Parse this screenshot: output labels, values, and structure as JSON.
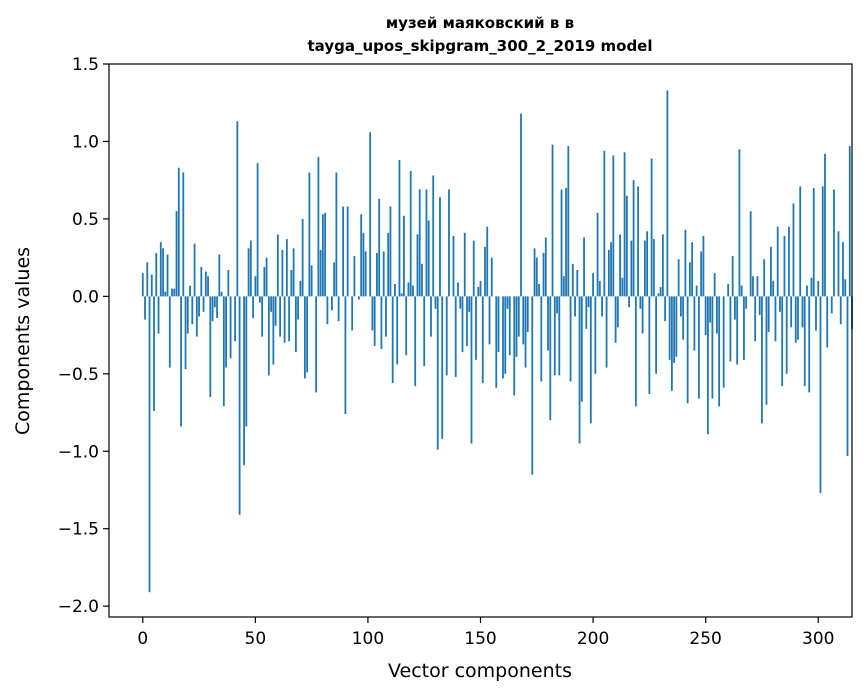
{
  "chart_data": {
    "type": "bar",
    "title": "музей маяковский в в",
    "subtitle": "tayga_upos_skipgram_300_2_2019 model",
    "xlabel": "Vector components",
    "ylabel": "Components values",
    "xlim": [
      -15,
      315
    ],
    "ylim": [
      -2.07,
      1.5
    ],
    "xticks": [
      0,
      50,
      100,
      150,
      200,
      250,
      300
    ],
    "xtick_labels": [
      "0",
      "50",
      "100",
      "150",
      "200",
      "250",
      "300"
    ],
    "yticks": [
      1.5,
      1.0,
      0.5,
      0.0,
      -0.5,
      -1.0,
      -1.5,
      -2.0
    ],
    "ytick_labels": [
      "1.5",
      "1.0",
      "0.5",
      "0.0",
      "−0.5",
      "−1.0",
      "−1.5",
      "−2.0"
    ],
    "bar_color": "#1f77b4",
    "grid": false,
    "values": [
      0.15,
      -0.15,
      0.22,
      -1.91,
      0.14,
      -0.74,
      0.28,
      -0.24,
      0.35,
      0.31,
      0.03,
      0.27,
      -0.46,
      0.05,
      0.05,
      0.55,
      0.83,
      -0.84,
      0.8,
      -0.47,
      -0.24,
      0.07,
      -0.18,
      0.34,
      -0.26,
      -0.13,
      0.19,
      -0.1,
      0.16,
      0.13,
      -0.65,
      -0.16,
      -0.07,
      -0.14,
      0.27,
      0.03,
      -0.71,
      -0.46,
      0.17,
      -0.4,
      0.0,
      -0.29,
      1.13,
      -1.41,
      0.0,
      -1.09,
      -0.84,
      0.31,
      0.36,
      -0.14,
      0.13,
      0.86,
      -0.04,
      -0.26,
      0.19,
      0.25,
      -0.51,
      -0.1,
      -0.44,
      -0.19,
      0.4,
      -0.26,
      0.3,
      -0.3,
      0.37,
      -0.29,
      0.17,
      0.31,
      -0.36,
      -0.15,
      0.1,
      0.5,
      -0.53,
      -0.49,
      0.8,
      0.2,
      0.0,
      -0.62,
      0.9,
      0.3,
      0.53,
      0.54,
      -0.18,
      0.0,
      -0.09,
      0.22,
      0.8,
      -0.16,
      0.0,
      0.58,
      -0.76,
      0.58,
      0.0,
      -0.22,
      0.26,
      0.0,
      -0.02,
      0.53,
      0.41,
      0.29,
      0.0,
      1.06,
      -0.22,
      -0.32,
      0.28,
      0.63,
      -0.34,
      0.29,
      -0.26,
      0.41,
      0.58,
      -0.56,
      0.08,
      -0.44,
      0.88,
      0.02,
      0.52,
      -0.38,
      0.09,
      0.81,
      0.07,
      -0.58,
      0.4,
      0.69,
      0.21,
      -0.45,
      0.69,
      0.49,
      -0.26,
      0.78,
      -0.08,
      -0.99,
      0.64,
      -0.92,
      0.0,
      -0.51,
      0.69,
      0.0,
      0.39,
      -0.52,
      0.09,
      -0.08,
      -0.36,
      0.41,
      -0.32,
      -0.1,
      -0.95,
      0.36,
      -0.41,
      0.06,
      0.1,
      -0.56,
      0.32,
      0.45,
      -0.31,
      0.25,
      0.0,
      -0.59,
      -0.36,
      0.0,
      -0.53,
      -0.5,
      -0.08,
      -0.38,
      0.0,
      -0.64,
      -0.39,
      -0.26,
      1.18,
      -0.31,
      -0.46,
      -0.23,
      0.0,
      -1.15,
      0.31,
      0.25,
      0.08,
      -0.55,
      0.28,
      0.38,
      -0.35,
      -0.8,
      0.98,
      -0.51,
      -0.11,
      -0.51,
      0.69,
      0.13,
      0.7,
      0.97,
      -0.55,
      0.21,
      -0.13,
      0.17,
      -0.95,
      -0.68,
      0.38,
      -0.21,
      -0.07,
      -0.82,
      0.15,
      -0.5,
      0.54,
      0.1,
      -0.13,
      0.94,
      -0.46,
      0.3,
      0.35,
      0.91,
      -0.3,
      -0.2,
      0.4,
      0.12,
      0.93,
      0.65,
      -0.07,
      0.36,
      0.75,
      -0.71,
      0.71,
      -0.08,
      -0.24,
      0.36,
      0.42,
      -0.63,
      0.89,
      0.37,
      -0.5,
      0.02,
      0.06,
      0.4,
      -0.16,
      1.33,
      -0.41,
      -0.61,
      -0.43,
      -0.39,
      0.24,
      -0.13,
      -0.28,
      0.43,
      -0.69,
      0.22,
      0.35,
      -0.35,
      0.07,
      -0.66,
      0.29,
      0.39,
      -0.25,
      -0.89,
      -0.17,
      -0.66,
      0.15,
      -0.24,
      -0.71,
      0.0,
      -0.59,
      0.0,
      0.08,
      -0.42,
      0.26,
      -0.15,
      -0.44,
      0.95,
      0.07,
      -0.41,
      -0.08,
      0.0,
      0.55,
      0.13,
      -0.29,
      0.13,
      -0.12,
      -0.82,
      0.24,
      -0.7,
      -0.23,
      0.32,
      0.1,
      -0.29,
      0.45,
      -0.1,
      -0.58,
      0.39,
      -0.5,
      0.45,
      -0.2,
      0.6,
      -0.3,
      -0.28,
      0.71,
      -0.2,
      -0.58,
      0.07,
      -0.62,
      0.12,
      0.7,
      -0.22,
      0.1,
      -1.27,
      0.71,
      0.92,
      -0.33,
      0.0,
      -0.11,
      0.69,
      0.0,
      0.42,
      -0.18,
      0.35,
      0.11,
      -1.03,
      0.97,
      -0.21
    ]
  }
}
